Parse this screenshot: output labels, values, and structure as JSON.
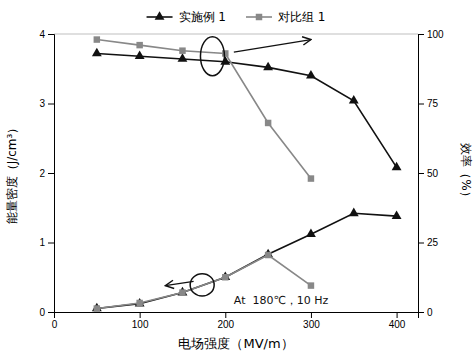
{
  "chart_data": {
    "type": "line",
    "xlabel": "电场强度（MV/m）",
    "ylabel": "能量密度（J/cm³）",
    "y2label": "效率（%）",
    "series": [
      {
        "name": "实施例 1",
        "color": "#111111",
        "marker": "triangle",
        "line_style": "solid",
        "axis": "y",
        "x": [
          50,
          100,
          150,
          200,
          250,
          300,
          350,
          400
        ],
        "values": [
          0.05,
          0.12,
          0.28,
          0.5,
          0.83,
          1.12,
          1.42,
          1.38
        ]
      },
      {
        "name": "对比组 1",
        "color": "#888888",
        "marker": "square",
        "line_style": "solid",
        "axis": "y",
        "x": [
          50,
          100,
          150,
          200,
          250,
          300
        ],
        "values": [
          0.05,
          0.13,
          0.28,
          0.5,
          0.82,
          0.38
        ]
      },
      {
        "name": "实施例 1",
        "color": "#111111",
        "marker": "triangle",
        "line_style": "solid",
        "axis": "y2",
        "x": [
          50,
          100,
          150,
          200,
          250,
          300,
          350,
          400
        ],
        "values": [
          93,
          92,
          91,
          90,
          88,
          85,
          76,
          52
        ]
      },
      {
        "name": "对比组 1",
        "color": "#888888",
        "marker": "square",
        "line_style": "solid",
        "axis": "y2",
        "x": [
          50,
          100,
          150,
          200,
          250,
          300
        ],
        "values": [
          98,
          96,
          94,
          93,
          68,
          48
        ]
      }
    ],
    "xlim": [
      0,
      425
    ],
    "xticks": [
      0,
      100,
      200,
      300,
      400
    ],
    "ylim": [
      0,
      4
    ],
    "yticks": [
      0,
      1,
      2,
      3,
      4
    ],
    "y2lim": [
      0,
      100
    ],
    "y2ticks": [
      0,
      25,
      50,
      75,
      100
    ],
    "grid": false,
    "legend": "top",
    "annotations": [
      {
        "text": "At  180℃，10 Hz",
        "x": 210,
        "y": 0.12,
        "axis": "y",
        "color": "#111111"
      }
    ],
    "ellipses": [
      {
        "cx": 185,
        "cy": 92,
        "width": 28,
        "height": 14,
        "axis": "y2",
        "color": "#111111"
      },
      {
        "cx": 173,
        "cy": 0.39,
        "width": 28,
        "height": 0.32,
        "axis": "y",
        "color": "#111111"
      }
    ],
    "arrows": [
      {
        "x": 210,
        "y": 93.5,
        "x_end": 300,
        "y_end": 98,
        "axis": "y2",
        "color": "#111111"
      },
      {
        "x": 163,
        "y": 0.44,
        "x_end": 130,
        "y_end": 0.38,
        "axis": "y",
        "color": "#111111"
      }
    ]
  }
}
